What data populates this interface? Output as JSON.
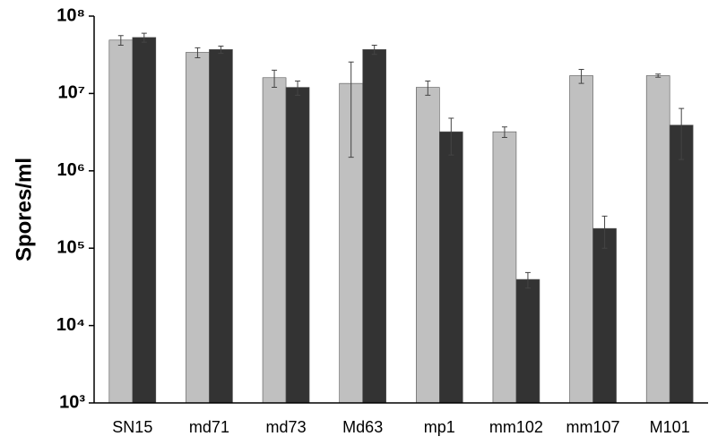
{
  "chart_data": {
    "type": "bar",
    "y_label": "Spores/ml",
    "log_scale": true,
    "categories": [
      "SN15",
      "md71",
      "md73",
      "Md63",
      "mp1",
      "mm102",
      "mm107",
      "M101"
    ],
    "series": [
      {
        "color": "#c0c0c0",
        "values": [
          49000000,
          34000000,
          16000000,
          13500000,
          12000000,
          3200000,
          17000000,
          17000000
        ],
        "errors": [
          7000000,
          5000000,
          4000000,
          12000000,
          2500000,
          500000,
          3500000,
          800000
        ]
      },
      {
        "color": "#333333",
        "values": [
          53000000,
          37000000,
          12000000,
          37000000,
          3200000,
          39500,
          180000,
          3900000
        ],
        "errors": [
          7000000,
          4000000,
          2500000,
          5000000,
          1600000,
          9000,
          80000,
          2500000
        ]
      }
    ],
    "ylim": [
      1000,
      100000000
    ],
    "yticks": [
      {
        "value": 1000,
        "label": "10³"
      },
      {
        "value": 10000,
        "label": "10⁴"
      },
      {
        "value": 100000,
        "label": "10⁵"
      },
      {
        "value": 1000000,
        "label": "10⁶"
      },
      {
        "value": 10000000,
        "label": "10⁷"
      },
      {
        "value": 100000000,
        "label": "10⁸"
      }
    ]
  }
}
